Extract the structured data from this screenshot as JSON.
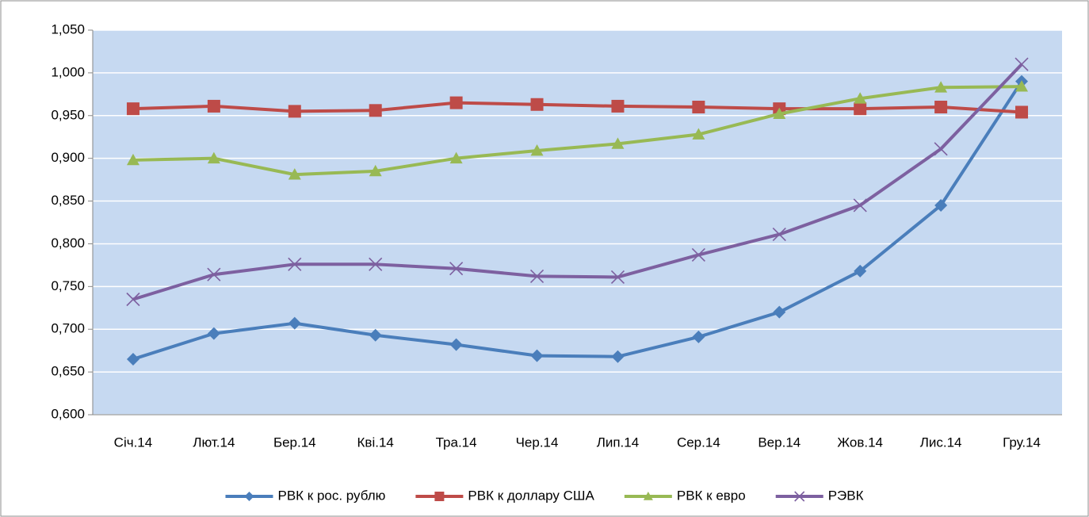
{
  "chart_data": {
    "type": "line",
    "categories": [
      "Січ.14",
      "Лют.14",
      "Бер.14",
      "Кві.14",
      "Тра.14",
      "Чер.14",
      "Лип.14",
      "Сер.14",
      "Вер.14",
      "Жов.14",
      "Лис.14",
      "Гру.14"
    ],
    "series": [
      {
        "name": "РВК к рос. рублю",
        "color": "#4a7ebb",
        "marker": "diamond",
        "values": [
          0.665,
          0.695,
          0.707,
          0.693,
          0.682,
          0.669,
          0.668,
          0.691,
          0.72,
          0.768,
          0.845,
          0.99
        ]
      },
      {
        "name": "РВК к доллару США",
        "color": "#be4b48",
        "marker": "square",
        "values": [
          0.958,
          0.961,
          0.955,
          0.956,
          0.965,
          0.963,
          0.961,
          0.96,
          0.958,
          0.958,
          0.96,
          0.954
        ]
      },
      {
        "name": "РВК к евро",
        "color": "#98b954",
        "marker": "triangle",
        "values": [
          0.898,
          0.9,
          0.881,
          0.885,
          0.9,
          0.909,
          0.917,
          0.928,
          0.952,
          0.97,
          0.983,
          0.984
        ]
      },
      {
        "name": "РЭВК",
        "color": "#7d60a0",
        "marker": "x",
        "values": [
          0.735,
          0.764,
          0.776,
          0.776,
          0.771,
          0.762,
          0.761,
          0.787,
          0.811,
          0.845,
          0.911,
          1.01
        ]
      }
    ],
    "ylim": [
      0.6,
      1.05
    ],
    "yticks": [
      {
        "value": 0.6,
        "label": "0,600"
      },
      {
        "value": 0.65,
        "label": "0,650"
      },
      {
        "value": 0.7,
        "label": "0,700"
      },
      {
        "value": 0.75,
        "label": "0,750"
      },
      {
        "value": 0.8,
        "label": "0,800"
      },
      {
        "value": 0.85,
        "label": "0,850"
      },
      {
        "value": 0.9,
        "label": "0,900"
      },
      {
        "value": 0.95,
        "label": "0,950"
      },
      {
        "value": 1.0,
        "label": "1,000"
      },
      {
        "value": 1.05,
        "label": "1,050"
      }
    ],
    "grid": true,
    "legend": "bottom",
    "plot_background": "#c6d9f1"
  }
}
